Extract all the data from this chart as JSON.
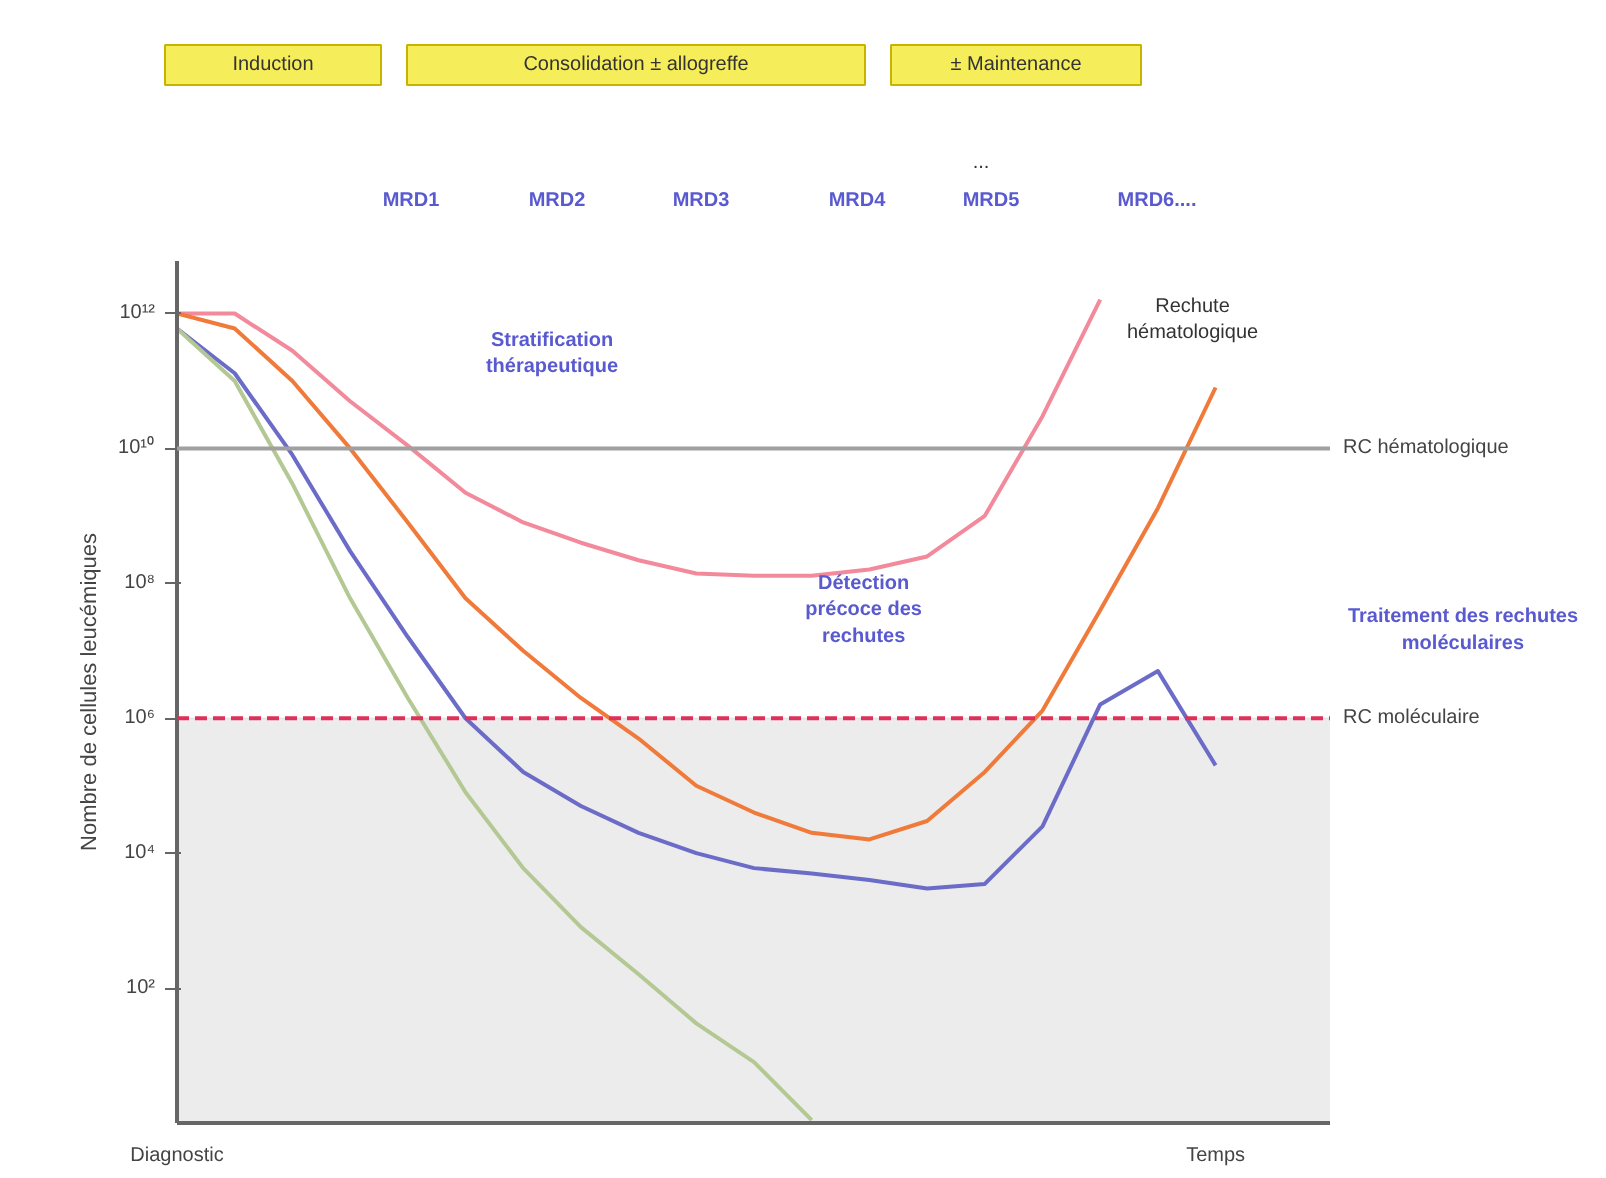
{
  "chart_data": {
    "type": "line",
    "ylabel": "Nombre de cellules leucémiques",
    "log": true,
    "grid": false,
    "line_style": "solid",
    "marker": "none",
    "categories": [
      "Diagnostic",
      null,
      null,
      null,
      null,
      null,
      null,
      null,
      null,
      null,
      null,
      null,
      null,
      null,
      null,
      null,
      null,
      null,
      "Temps",
      null,
      null
    ],
    "ylim": [
      1,
      6000000000000.0
    ],
    "yticks": [
      {
        "value": 100,
        "label": "10²"
      },
      {
        "value": 10000,
        "label": "10⁴"
      },
      {
        "value": 1000000,
        "label": "10⁶"
      },
      {
        "value": 100000000,
        "label": "10⁸"
      },
      {
        "value": 10000000000,
        "label": "10¹⁰"
      },
      {
        "value": 1000000000000,
        "label": "10¹²"
      }
    ],
    "series": [
      {
        "color": "#f28a9c",
        "values": [
          1000000000000.0,
          1000000000000.0,
          280000000000.0,
          50000000000.0,
          11000000000.0,
          2200000000.0,
          800000000.0,
          400000000.0,
          220000000.0,
          140000000.0,
          130000000.0,
          130000000.0,
          160000000.0,
          250000000.0,
          1000000000.0,
          30000000000.0,
          1600000000000.0,
          null,
          null,
          null,
          null
        ]
      },
      {
        "color": "#f07a3a",
        "values": [
          1000000000000.0,
          600000000000.0,
          100000000000.0,
          10000000000.0,
          800000000.0,
          60000000.0,
          10000000.0,
          2000000.0,
          500000.0,
          100000.0,
          40000.0,
          20000.0,
          16000.0,
          30000.0,
          160000.0,
          1300000.0,
          40000000.0,
          1300000000.0,
          80000000000.0,
          null,
          null
        ]
      },
      {
        "color": "#6b6bc8",
        "values": [
          600000000000.0,
          130000000000.0,
          8000000000.0,
          300000000.0,
          16000000.0,
          1000000.0,
          160000.0,
          50000.0,
          20000.0,
          10000.0,
          6000.0,
          5000.0,
          4000.0,
          3000.0,
          3500.0,
          25000.0,
          1600000.0,
          5000000.0,
          200000.0,
          null,
          null
        ]
      },
      {
        "color": "#b4c894",
        "values": [
          600000000000.0,
          100000000000.0,
          3000000000.0,
          60000000.0,
          2000000.0,
          80000.0,
          6000.0,
          800,
          160,
          30,
          8,
          1.1,
          null,
          null,
          null,
          null,
          null,
          null,
          null,
          null,
          null
        ]
      }
    ],
    "ref_lines": [
      {
        "axis": "y",
        "value": 10000000000,
        "label": "RC hématologique",
        "color": "#a0a0a0",
        "line_style": "solid"
      },
      {
        "axis": "y",
        "value": 1000000,
        "label": "RC moléculaire",
        "color": "#e0305a",
        "line_style": "dashed"
      }
    ],
    "bands": [
      {
        "axis": "y",
        "from": 1,
        "to": 1000000,
        "color": "#ececec"
      }
    ],
    "annotations": [
      "Induction",
      "Consolidation ± allogreffe",
      "± Maintenance",
      "MRD1",
      "MRD2",
      "MRD3",
      "MRD4",
      "MRD5",
      "MRD6....",
      "...",
      "Stratification\nthérapeutique",
      "Rechute\nhématologique",
      "Détection\nprécoce des\nrechutes",
      "Traitement des rechutes\nmoléculaires"
    ]
  }
}
